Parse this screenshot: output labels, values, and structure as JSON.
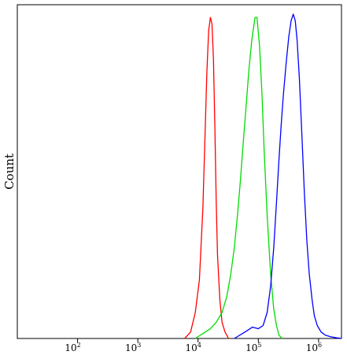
{
  "chart_data": {
    "type": "line",
    "title": "",
    "xlabel": "",
    "ylabel": "Count",
    "x_scale": "log",
    "xlim": [
      10,
      2400000
    ],
    "ylim": [
      0,
      1
    ],
    "grid": false,
    "legend": "none",
    "x_ticks": [
      {
        "base": "10",
        "exp": "2",
        "value": 100
      },
      {
        "base": "10",
        "exp": "3",
        "value": 1000
      },
      {
        "base": "10",
        "exp": "4",
        "value": 10000
      },
      {
        "base": "10",
        "exp": "5",
        "value": 100000
      },
      {
        "base": "10",
        "exp": "6",
        "value": 1000000
      }
    ],
    "series": [
      {
        "color": "#ff0000",
        "x": [
          6000,
          7500,
          9000,
          10500,
          12000,
          13000,
          14000,
          15000,
          16000,
          17000,
          18000,
          19000,
          20000,
          21000,
          23000,
          25000,
          28000,
          32000
        ],
        "y": [
          0,
          0.02,
          0.08,
          0.18,
          0.4,
          0.62,
          0.82,
          0.95,
          0.99,
          0.97,
          0.86,
          0.65,
          0.42,
          0.26,
          0.12,
          0.05,
          0.02,
          0
        ]
      },
      {
        "color": "#00dd00",
        "x": [
          9000,
          12000,
          16000,
          20000,
          25000,
          30000,
          35000,
          40000,
          45000,
          50000,
          56000,
          63000,
          70000,
          78000,
          88000,
          95000,
          105000,
          115000,
          125000,
          140000,
          160000,
          180000,
          200000,
          220000,
          250000
        ],
        "y": [
          0,
          0.015,
          0.03,
          0.05,
          0.08,
          0.13,
          0.2,
          0.28,
          0.38,
          0.48,
          0.6,
          0.72,
          0.83,
          0.92,
          0.99,
          0.99,
          0.9,
          0.75,
          0.58,
          0.38,
          0.2,
          0.09,
          0.04,
          0.01,
          0
        ]
      },
      {
        "color": "#0000ff",
        "x": [
          40000,
          60000,
          80000,
          100000,
          120000,
          140000,
          160000,
          180000,
          200000,
          220000,
          240000,
          260000,
          290000,
          320000,
          350000,
          380000,
          410000,
          440000,
          480000,
          530000,
          580000,
          640000,
          700000,
          780000,
          850000,
          950000,
          1100000,
          1300000,
          1600000,
          2000000,
          2400000
        ],
        "y": [
          0,
          0.02,
          0.035,
          0.03,
          0.04,
          0.08,
          0.16,
          0.28,
          0.42,
          0.55,
          0.66,
          0.75,
          0.85,
          0.93,
          0.98,
          1.0,
          0.98,
          0.92,
          0.8,
          0.62,
          0.45,
          0.3,
          0.2,
          0.12,
          0.07,
          0.04,
          0.02,
          0.01,
          0.005,
          0.002,
          0
        ]
      }
    ]
  }
}
